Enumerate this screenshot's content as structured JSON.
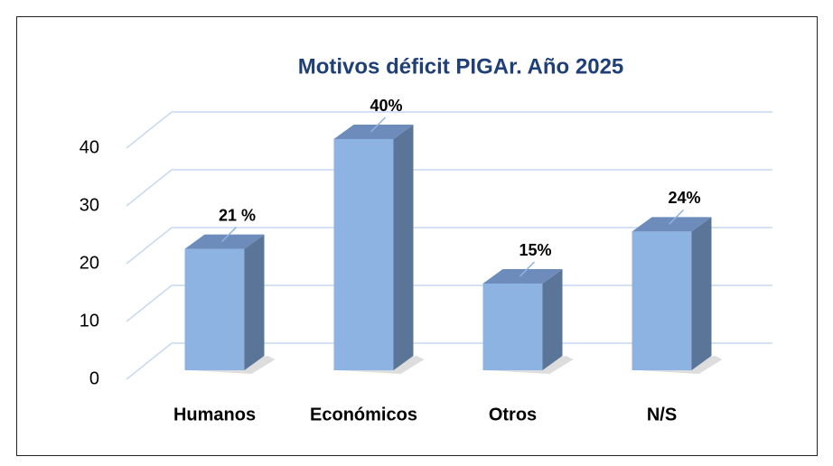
{
  "chart_data": {
    "type": "bar3d",
    "title": "Motivos déficit PIGAr. Año 2025",
    "categories": [
      "Humanos",
      "Económicos",
      "Otros",
      "N/S"
    ],
    "values": [
      21,
      40,
      15,
      24
    ],
    "value_labels": [
      "21 %",
      "40%",
      "15%",
      "24%"
    ],
    "color": "#8db3e2",
    "ylim": [
      0,
      40
    ],
    "yticks": [
      0,
      10,
      20,
      30,
      40
    ],
    "grid": true
  }
}
